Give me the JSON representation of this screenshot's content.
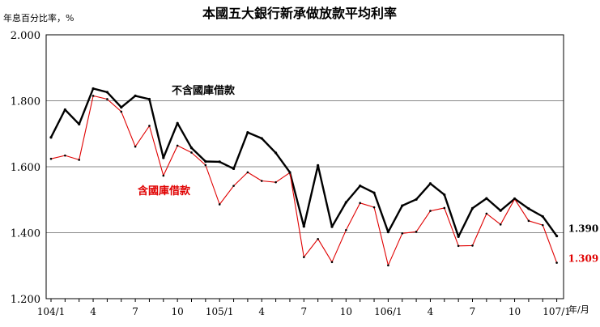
{
  "chart_data": {
    "type": "line",
    "title": "本國五大銀行新承做放款平均利率",
    "ylabel": "年息百分比率，%",
    "xlabel": "年/月",
    "ylim": [
      1.2,
      2.0
    ],
    "yticks": [
      1.2,
      1.4,
      1.6,
      1.8,
      2.0
    ],
    "ytick_labels": [
      "1.200",
      "1.400",
      "1.600",
      "1.800",
      "2.000"
    ],
    "grid": true,
    "x": [
      "104/1",
      "104/2",
      "104/3",
      "104/4",
      "104/5",
      "104/6",
      "104/7",
      "104/8",
      "104/9",
      "104/10",
      "104/11",
      "104/12",
      "105/1",
      "105/2",
      "105/3",
      "105/4",
      "105/5",
      "105/6",
      "105/7",
      "105/8",
      "105/9",
      "105/10",
      "105/11",
      "105/12",
      "106/1",
      "106/2",
      "106/3",
      "106/4",
      "106/5",
      "106/6",
      "106/7",
      "106/8",
      "106/9",
      "106/10",
      "106/11",
      "106/12",
      "107/1"
    ],
    "xtick_labels": [
      "104/1",
      "",
      "",
      "4",
      "",
      "",
      "7",
      "",
      "",
      "10",
      "",
      "",
      "105/1",
      "",
      "",
      "4",
      "",
      "",
      "7",
      "",
      "",
      "10",
      "",
      "",
      "106/1",
      "",
      "",
      "4",
      "",
      "",
      "7",
      "",
      "",
      "10",
      "",
      "",
      "107/1"
    ],
    "series": [
      {
        "name": "不含國庫借款",
        "color": "#000000",
        "values": [
          1.689,
          1.773,
          1.729,
          1.837,
          1.826,
          1.78,
          1.815,
          1.805,
          1.627,
          1.732,
          1.657,
          1.616,
          1.615,
          1.594,
          1.704,
          1.686,
          1.642,
          1.583,
          1.419,
          1.604,
          1.418,
          1.492,
          1.542,
          1.521,
          1.402,
          1.482,
          1.501,
          1.549,
          1.515,
          1.388,
          1.474,
          1.504,
          1.467,
          1.503,
          1.473,
          1.449,
          1.39
        ],
        "end_label": "1.390"
      },
      {
        "name": "含國庫借款",
        "color": "#e00000",
        "values": [
          1.624,
          1.634,
          1.621,
          1.815,
          1.805,
          1.767,
          1.661,
          1.724,
          1.573,
          1.664,
          1.643,
          1.605,
          1.486,
          1.542,
          1.583,
          1.557,
          1.553,
          1.582,
          1.326,
          1.381,
          1.311,
          1.408,
          1.49,
          1.477,
          1.301,
          1.398,
          1.403,
          1.466,
          1.475,
          1.36,
          1.361,
          1.458,
          1.425,
          1.502,
          1.436,
          1.423,
          1.309
        ],
        "end_label": "1.309"
      }
    ]
  }
}
